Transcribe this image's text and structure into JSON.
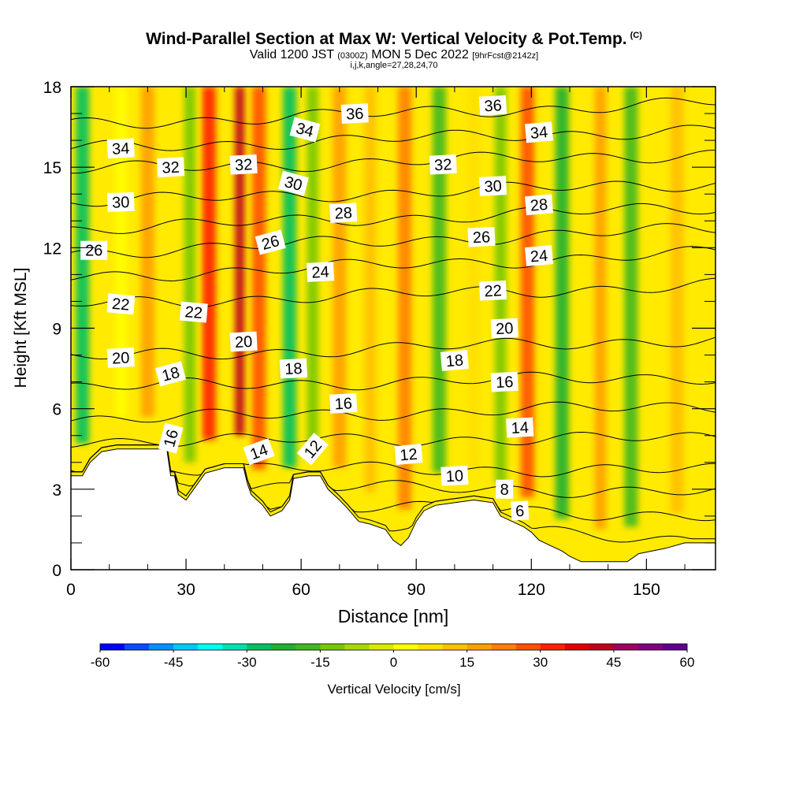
{
  "header": {
    "title": "Wind-Parallel Section at Max W: Vertical Velocity & Pot.Temp.",
    "copyright": "(C)",
    "valid_main": "Valid 1200 JST",
    "valid_utc": "(0300Z)",
    "valid_date": "MON 5 Dec 2022",
    "forecast": "[9hrFcst@2142z]",
    "params": "i,j,k,angle=27,28,24,70"
  },
  "chart_data": {
    "type": "heatmap",
    "title": "Wind-Parallel Section at Max W: Vertical Velocity & Pot.Temp.",
    "xlabel": "Distance [nm]",
    "ylabel": "Height [Kft MSL]",
    "xlim": [
      0,
      168
    ],
    "ylim": [
      0,
      18
    ],
    "x_ticks": [
      0,
      30,
      60,
      90,
      120,
      150
    ],
    "y_ticks": [
      0,
      3,
      6,
      9,
      12,
      15,
      18
    ],
    "grid": false,
    "colorbar": {
      "label": "Vertical Velocity [cm/s]",
      "ticks": [
        "-60",
        "-45",
        "-30",
        "-15",
        "0",
        "15",
        "30",
        "45",
        "60"
      ],
      "colors": [
        "#0000ff",
        "#0a4aff",
        "#0090ff",
        "#00c8ff",
        "#00ffee",
        "#00e0b0",
        "#00c060",
        "#20b030",
        "#40b820",
        "#78c800",
        "#a8d800",
        "#d8e800",
        "#ffff00",
        "#ffe000",
        "#ffc000",
        "#ffa000",
        "#ff8000",
        "#ff5000",
        "#ff2000",
        "#e00000",
        "#c00020",
        "#a00060",
        "#800080",
        "#600090"
      ]
    },
    "terrain": [
      [
        0,
        3.5
      ],
      [
        3,
        3.5
      ],
      [
        5,
        4.0
      ],
      [
        8,
        4.4
      ],
      [
        12,
        4.5
      ],
      [
        25,
        4.5
      ],
      [
        26,
        3.5
      ],
      [
        27,
        3.5
      ],
      [
        28,
        2.8
      ],
      [
        30,
        2.6
      ],
      [
        32,
        3.0
      ],
      [
        35,
        3.6
      ],
      [
        40,
        3.8
      ],
      [
        45,
        3.8
      ],
      [
        46,
        3.2
      ],
      [
        47,
        2.8
      ],
      [
        50,
        2.4
      ],
      [
        52,
        2.0
      ],
      [
        55,
        2.2
      ],
      [
        57,
        2.6
      ],
      [
        58,
        3.4
      ],
      [
        62,
        3.5
      ],
      [
        65,
        3.5
      ],
      [
        67,
        3.0
      ],
      [
        70,
        2.6
      ],
      [
        72,
        2.3
      ],
      [
        75,
        1.8
      ],
      [
        78,
        1.7
      ],
      [
        82,
        1.5
      ],
      [
        84,
        1.1
      ],
      [
        86,
        0.9
      ],
      [
        88,
        1.2
      ],
      [
        90,
        1.8
      ],
      [
        92,
        2.2
      ],
      [
        95,
        2.4
      ],
      [
        100,
        2.5
      ],
      [
        105,
        2.6
      ],
      [
        110,
        2.5
      ],
      [
        112,
        2.0
      ],
      [
        115,
        1.8
      ],
      [
        118,
        1.6
      ],
      [
        120,
        1.4
      ],
      [
        122,
        1.1
      ],
      [
        125,
        0.9
      ],
      [
        128,
        0.7
      ],
      [
        130,
        0.5
      ],
      [
        133,
        0.3
      ],
      [
        145,
        0.3
      ],
      [
        148,
        0.6
      ],
      [
        155,
        0.8
      ],
      [
        160,
        1.0
      ],
      [
        168,
        1.0
      ]
    ],
    "velocity_bands": [
      {
        "x": 3,
        "w": 3.5,
        "value": -30
      },
      {
        "x": 13,
        "w": 3.0,
        "value": 0
      },
      {
        "x": 20,
        "w": 3.5,
        "value": 15
      },
      {
        "x": 31,
        "w": 3.0,
        "value": -15
      },
      {
        "x": 36,
        "w": 3.5,
        "value": 30
      },
      {
        "x": 44,
        "w": 2.5,
        "value": 40
      },
      {
        "x": 49,
        "w": 3.5,
        "value": 25
      },
      {
        "x": 57,
        "w": 3.5,
        "value": -30
      },
      {
        "x": 63,
        "w": 3.0,
        "value": -15
      },
      {
        "x": 70,
        "w": 3.5,
        "value": 15
      },
      {
        "x": 78,
        "w": 3.0,
        "value": 10
      },
      {
        "x": 87,
        "w": 3.5,
        "value": 20
      },
      {
        "x": 96,
        "w": 3.5,
        "value": -20
      },
      {
        "x": 105,
        "w": 3.0,
        "value": 5
      },
      {
        "x": 112,
        "w": 3.0,
        "value": -15
      },
      {
        "x": 119,
        "w": 3.5,
        "value": 25
      },
      {
        "x": 128,
        "w": 3.5,
        "value": -25
      },
      {
        "x": 138,
        "w": 3.0,
        "value": 15
      },
      {
        "x": 146,
        "w": 3.5,
        "value": -20
      },
      {
        "x": 158,
        "w": 3.5,
        "value": 10
      }
    ],
    "theta_levels": [
      {
        "label": "6",
        "y_left": 2.2,
        "y_right": 1.1
      },
      {
        "label": "8",
        "y_left": 2.6,
        "y_right": 2.0
      },
      {
        "label": "10",
        "y_left": 3.2,
        "y_right": 2.9
      },
      {
        "label": "12",
        "y_left": 3.8,
        "y_right": 3.7
      },
      {
        "label": "14",
        "y_left": 4.8,
        "y_right": 4.9
      },
      {
        "label": "16",
        "y_left": 5.6,
        "y_right": 6.1
      },
      {
        "label": "18",
        "y_left": 6.8,
        "y_right": 7.2
      },
      {
        "label": "20",
        "y_left": 7.9,
        "y_right": 8.6
      },
      {
        "label": "22",
        "y_left": 9.9,
        "y_right": 10.6
      },
      {
        "label": "24",
        "y_left": 10.9,
        "y_right": 11.8
      },
      {
        "label": "26",
        "y_left": 11.8,
        "y_right": 12.7
      },
      {
        "label": "28",
        "y_left": 12.7,
        "y_right": 13.5
      },
      {
        "label": "30",
        "y_left": 13.7,
        "y_right": 14.4
      },
      {
        "label": "32",
        "y_left": 14.9,
        "y_right": 15.5
      },
      {
        "label": "34",
        "y_left": 15.7,
        "y_right": 16.4
      },
      {
        "label": "36",
        "y_left": 16.6,
        "y_right": 17.4
      }
    ],
    "contour_labels": [
      {
        "text": "34",
        "x": 13,
        "y": 15.7,
        "rot": -3
      },
      {
        "text": "32",
        "x": 26,
        "y": 15.0,
        "rot": -3
      },
      {
        "text": "32",
        "x": 45,
        "y": 15.1,
        "rot": -3
      },
      {
        "text": "34",
        "x": 61,
        "y": 16.4,
        "rot": 15
      },
      {
        "text": "36",
        "x": 74,
        "y": 17.0,
        "rot": -3
      },
      {
        "text": "30",
        "x": 13,
        "y": 13.7,
        "rot": -2
      },
      {
        "text": "30",
        "x": 58,
        "y": 14.4,
        "rot": 15
      },
      {
        "text": "32",
        "x": 97,
        "y": 15.1,
        "rot": -3
      },
      {
        "text": "36",
        "x": 110,
        "y": 17.3,
        "rot": -3
      },
      {
        "text": "34",
        "x": 122,
        "y": 16.3,
        "rot": -5
      },
      {
        "text": "30",
        "x": 110,
        "y": 14.3,
        "rot": -3
      },
      {
        "text": "28",
        "x": 71,
        "y": 13.3,
        "rot": -3
      },
      {
        "text": "28",
        "x": 122,
        "y": 13.6,
        "rot": -5
      },
      {
        "text": "26",
        "x": 6,
        "y": 11.9,
        "rot": 0
      },
      {
        "text": "26",
        "x": 52,
        "y": 12.2,
        "rot": -15
      },
      {
        "text": "26",
        "x": 107,
        "y": 12.4,
        "rot": -3
      },
      {
        "text": "24",
        "x": 65,
        "y": 11.1,
        "rot": -3
      },
      {
        "text": "24",
        "x": 122,
        "y": 11.7,
        "rot": -5
      },
      {
        "text": "22",
        "x": 13,
        "y": 9.9,
        "rot": 5
      },
      {
        "text": "22",
        "x": 32,
        "y": 9.6,
        "rot": 5
      },
      {
        "text": "22",
        "x": 110,
        "y": 10.4,
        "rot": -3
      },
      {
        "text": "20",
        "x": 13,
        "y": 7.9,
        "rot": -3
      },
      {
        "text": "20",
        "x": 45,
        "y": 8.5,
        "rot": -3
      },
      {
        "text": "20",
        "x": 113,
        "y": 9.0,
        "rot": -3
      },
      {
        "text": "18",
        "x": 26,
        "y": 7.3,
        "rot": -15
      },
      {
        "text": "18",
        "x": 58,
        "y": 7.5,
        "rot": -3
      },
      {
        "text": "18",
        "x": 100,
        "y": 7.8,
        "rot": -5
      },
      {
        "text": "16",
        "x": 71,
        "y": 6.2,
        "rot": -3
      },
      {
        "text": "16",
        "x": 113,
        "y": 7.0,
        "rot": -3
      },
      {
        "text": "16",
        "x": 26,
        "y": 4.9,
        "rot": -75
      },
      {
        "text": "14",
        "x": 49,
        "y": 4.4,
        "rot": -20
      },
      {
        "text": "14",
        "x": 117,
        "y": 5.3,
        "rot": -3
      },
      {
        "text": "12",
        "x": 63,
        "y": 4.5,
        "rot": -50
      },
      {
        "text": "12",
        "x": 88,
        "y": 4.3,
        "rot": -5
      },
      {
        "text": "10",
        "x": 100,
        "y": 3.5,
        "rot": -3
      },
      {
        "text": "8",
        "x": 113,
        "y": 3.0,
        "rot": 0
      },
      {
        "text": "6",
        "x": 117,
        "y": 2.2,
        "rot": -3
      }
    ]
  }
}
